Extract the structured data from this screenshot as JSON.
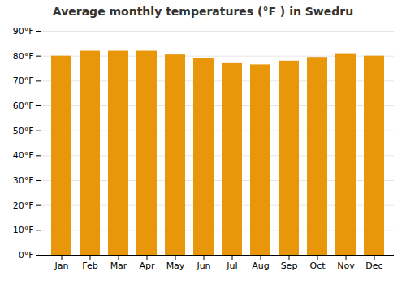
{
  "chart_data": {
    "type": "bar",
    "title": "Average monthly temperatures (°F ) in Swedru",
    "categories": [
      "Jan",
      "Feb",
      "Mar",
      "Apr",
      "May",
      "Jun",
      "Jul",
      "Aug",
      "Sep",
      "Oct",
      "Nov",
      "Dec"
    ],
    "values": [
      80.0,
      82.0,
      82.0,
      82.0,
      80.5,
      79.0,
      77.0,
      76.5,
      78.0,
      79.5,
      81.0,
      80.0
    ],
    "color": "#E8960A",
    "ylim": [
      0,
      90
    ],
    "yticks": [
      {
        "value": 0,
        "label": "0°F"
      },
      {
        "value": 10,
        "label": "10°F"
      },
      {
        "value": 20,
        "label": "20°F"
      },
      {
        "value": 30,
        "label": "30°F"
      },
      {
        "value": 40,
        "label": "40°F"
      },
      {
        "value": 50,
        "label": "50°F"
      },
      {
        "value": 60,
        "label": "60°F"
      },
      {
        "value": 70,
        "label": "70°F"
      },
      {
        "value": 80,
        "label": "80°F"
      },
      {
        "value": 90,
        "label": "90°F"
      }
    ],
    "grid": true
  }
}
